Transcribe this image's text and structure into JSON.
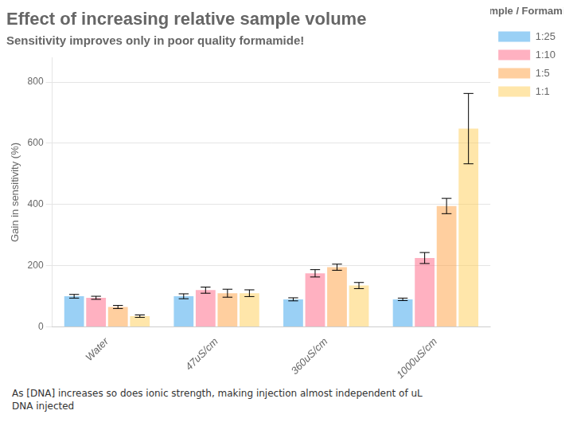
{
  "chart_data": {
    "type": "bar",
    "title": "Effect of increasing relative sample volume",
    "subtitle": "Sensitivity improves only in poor quality formamide!",
    "ylabel": "Gain in sensitivity (%)",
    "annotations": [
      "Sample / Formamide"
    ],
    "footnote": "As [DNA] increases so does ionic strength, making injection almost independent of uL\nDNA injected",
    "categories": [
      "Water",
      "47uS/cm",
      "360uS/cm",
      "1000uS/cm"
    ],
    "series": [
      {
        "name": "1:25",
        "values": [
          100,
          100,
          90,
          90
        ],
        "errors": [
          6,
          8,
          5,
          4
        ]
      },
      {
        "name": "1:10",
        "values": [
          95,
          120,
          175,
          225
        ],
        "errors": [
          5,
          10,
          12,
          18
        ]
      },
      {
        "name": "1:5",
        "values": [
          65,
          110,
          195,
          395
        ],
        "errors": [
          5,
          13,
          10,
          25
        ]
      },
      {
        "name": "1:1",
        "values": [
          35,
          110,
          135,
          648
        ],
        "errors": [
          4,
          11,
          10,
          115
        ]
      }
    ],
    "ylim": [
      0,
      880
    ],
    "yticks": [
      0,
      200,
      400,
      600,
      800
    ],
    "grid": true,
    "legend": "right"
  }
}
